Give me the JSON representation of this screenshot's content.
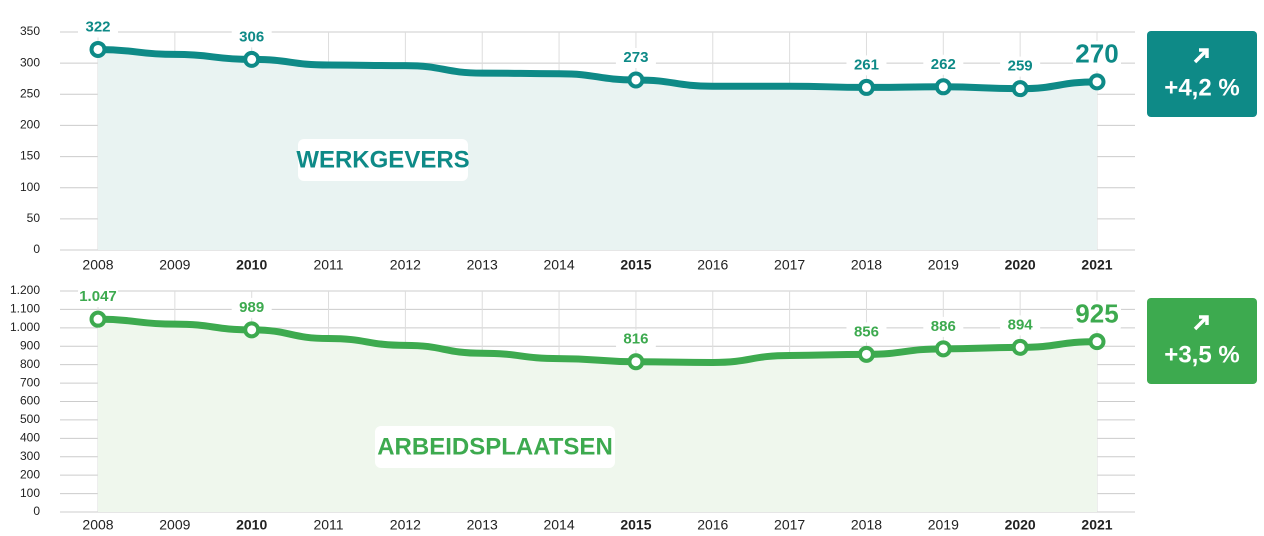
{
  "chart_data": [
    {
      "type": "line",
      "title": "WERKGEVERS",
      "change": "+4,2 %",
      "color": "#0e8a87",
      "area_color": "#e9f3f2",
      "categories": [
        "2008",
        "2009",
        "2010",
        "2011",
        "2012",
        "2013",
        "2014",
        "2015",
        "2016",
        "2017",
        "2018",
        "2019",
        "2020",
        "2021"
      ],
      "bold_categories": [
        "2010",
        "2015",
        "2020",
        "2021"
      ],
      "values": [
        322,
        314,
        306,
        297,
        296,
        284,
        283,
        273,
        263,
        263,
        261,
        262,
        259,
        270
      ],
      "value_labels": [
        "322",
        null,
        "306",
        null,
        null,
        null,
        null,
        "273",
        null,
        null,
        "261",
        "262",
        "259",
        "270"
      ],
      "emphasize_last": true,
      "ylim": [
        0,
        350
      ],
      "yticks": [
        0,
        50,
        100,
        150,
        200,
        250,
        300,
        350
      ],
      "grid": true
    },
    {
      "type": "line",
      "title": "ARBEIDSPLAATSEN",
      "change": "+3,5 %",
      "color": "#3daa4f",
      "area_color": "#eff7ed",
      "categories": [
        "2008",
        "2009",
        "2010",
        "2011",
        "2012",
        "2013",
        "2014",
        "2015",
        "2016",
        "2017",
        "2018",
        "2019",
        "2020",
        "2021"
      ],
      "bold_categories": [
        "2010",
        "2015",
        "2020",
        "2021"
      ],
      "values": [
        1047,
        1020,
        989,
        942,
        905,
        862,
        833,
        816,
        812,
        850,
        856,
        886,
        894,
        925
      ],
      "value_labels": [
        "1.047",
        null,
        "989",
        null,
        null,
        null,
        null,
        "816",
        null,
        null,
        "856",
        "886",
        "894",
        "925"
      ],
      "emphasize_last": true,
      "ylim": [
        0,
        1200
      ],
      "yticks": [
        0,
        100,
        200,
        300,
        400,
        500,
        600,
        700,
        800,
        900,
        {
          "value": 1000,
          "label": "1.000"
        },
        {
          "value": 1100,
          "label": "1.100"
        },
        {
          "value": 1200,
          "label": "1.200"
        }
      ],
      "grid": true
    }
  ]
}
